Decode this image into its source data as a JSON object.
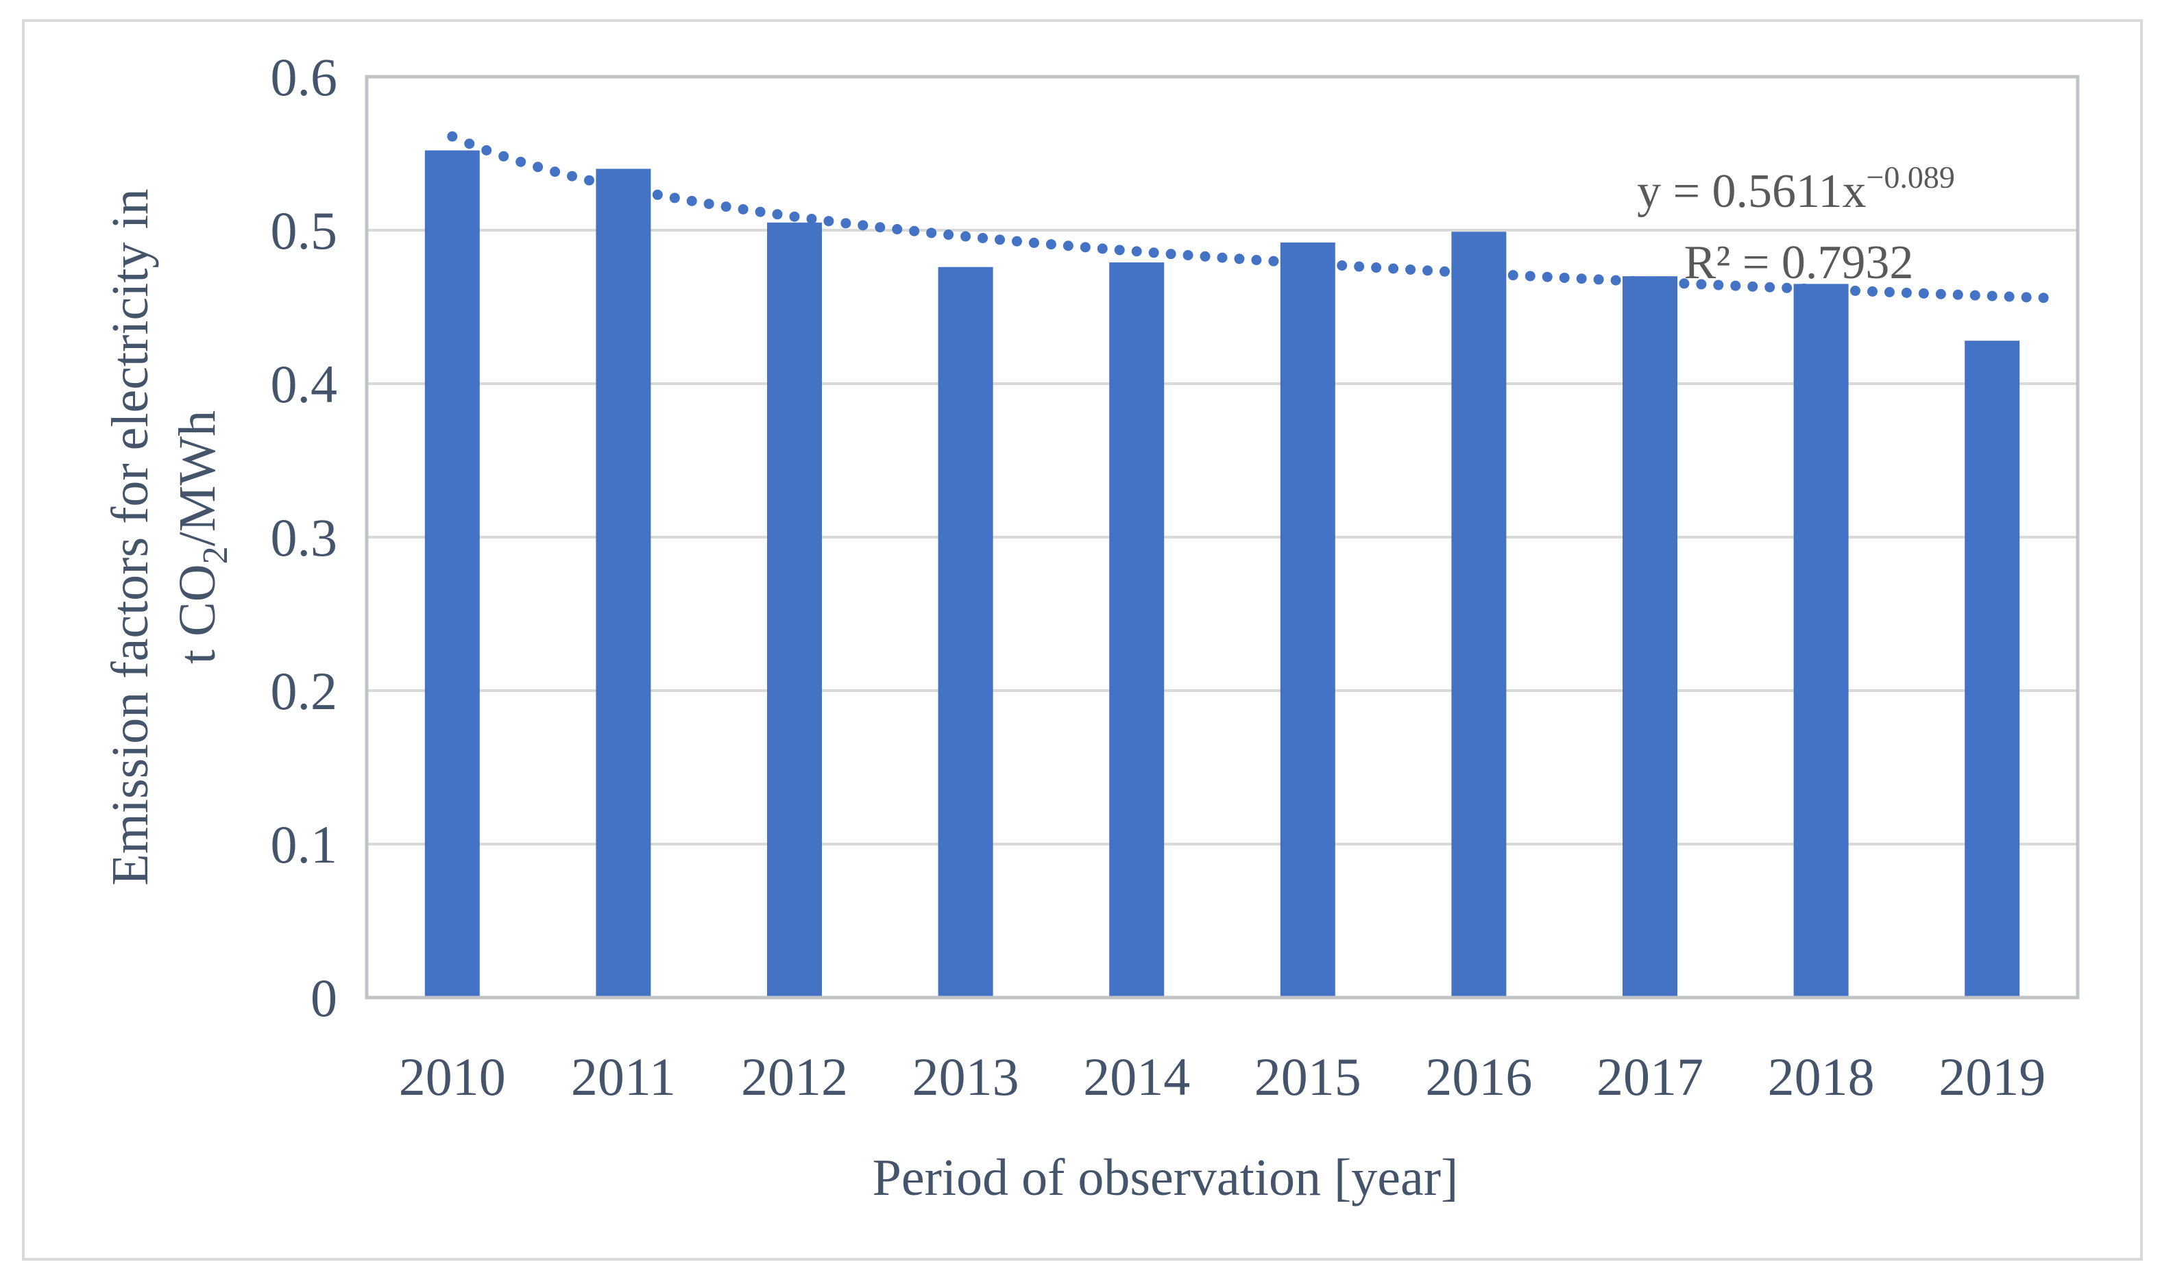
{
  "figure": {
    "background": "#FFFFFF",
    "border_color": "#D9D9D9"
  },
  "chart_data": {
    "type": "bar",
    "title": "",
    "categories": [
      "2010",
      "2011",
      "2012",
      "2013",
      "2014",
      "2015",
      "2016",
      "2017",
      "2018",
      "2019"
    ],
    "values": [
      0.552,
      0.54,
      0.505,
      0.476,
      0.479,
      0.492,
      0.499,
      0.47,
      0.465,
      0.428
    ],
    "xlabel": "Period of observation [year]",
    "ylabel_line1": "Emission factors for electricity in",
    "ylabel_line2": {
      "pre": "t CO",
      "sub": "2",
      "post": "/MWh"
    },
    "ylim": [
      0,
      0.6
    ],
    "ytick_labels": [
      "0",
      "0.1",
      "0.2",
      "0.3",
      "0.4",
      "0.5",
      "0.6"
    ],
    "ytick_values": [
      0,
      0.1,
      0.2,
      0.3,
      0.4,
      0.5,
      0.6
    ],
    "grid": "horizontal",
    "legend": "none",
    "bar_color": "#4472C4",
    "gridline_color": "#D9D9D9",
    "axis_line_color": "#C1C4C7",
    "axis_text_color": "#44546A",
    "equation_text_color": "#595959",
    "trendline": {
      "type": "power",
      "coefficient": 0.5611,
      "exponent": -0.089,
      "equation_base": "y = 0.5611x",
      "equation_exponent": "−0.089",
      "r2_text": "R² = 0.7932",
      "style": "dotted",
      "color": "#4472C4",
      "x_start": 1.0,
      "x_end": 10.3
    }
  }
}
